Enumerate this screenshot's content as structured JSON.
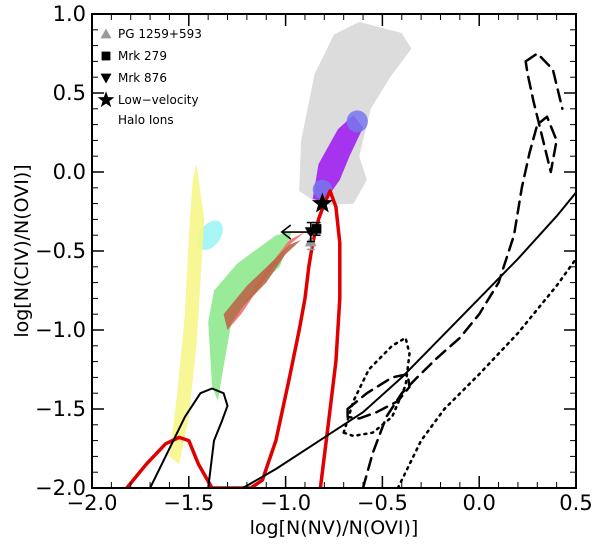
{
  "chart_data": {
    "type": "scatter",
    "title": "",
    "xlabel": "log[N(NV)/N(OVI)]",
    "ylabel": "log[N(CIV)/N(OVI)]",
    "xlim": [
      -2.0,
      0.5
    ],
    "ylim": [
      -2.0,
      1.0
    ],
    "x_ticks": [
      -2.0,
      -1.5,
      -1.0,
      -0.5,
      0.0,
      0.5
    ],
    "x_tick_labels": [
      "−2.0",
      "−1.5",
      "−1.0",
      "−0.5",
      "0.0",
      "0.5"
    ],
    "y_ticks": [
      -2.0,
      -1.5,
      -1.0,
      -0.5,
      0.0,
      0.5,
      1.0
    ],
    "y_tick_labels": [
      "−2.0",
      "−1.5",
      "−1.0",
      "−0.5",
      "0.0",
      "0.5",
      "1.0"
    ],
    "grid": false,
    "legend_position": "top-left",
    "legend": [
      {
        "label": "PG 1259+593",
        "marker": "triangle-up",
        "color": "#9a9a9a"
      },
      {
        "label": "Mrk 279",
        "marker": "square",
        "color": "#000000"
      },
      {
        "label": "Mrk 876",
        "marker": "triangle-down",
        "color": "#000000"
      },
      {
        "label": "Low−velocity",
        "label2": "Halo Ions",
        "marker": "star",
        "color": "#000000"
      }
    ],
    "points": [
      {
        "series": "PG 1259+593",
        "x": -0.87,
        "y": -0.44,
        "yerr": 0.05,
        "marker": "triangle-up",
        "color": "#9a9a9a"
      },
      {
        "series": "Mrk 279",
        "x": -0.84,
        "y": -0.36,
        "yerr": 0.04,
        "marker": "square",
        "color": "#000000"
      },
      {
        "series": "Mrk 876",
        "x": -0.87,
        "y": -0.38,
        "yerr": 0.06,
        "marker": "triangle-down",
        "color": "#000000",
        "upper_limit_x": true
      },
      {
        "series": "Low−velocity Halo Ions",
        "x": -0.81,
        "y": -0.2,
        "marker": "star",
        "color": "#000000"
      }
    ],
    "regions": [
      {
        "id": "grey",
        "color": "#d8d8d8",
        "polygon": [
          [
            -0.62,
            0.95
          ],
          [
            -0.4,
            0.88
          ],
          [
            -0.35,
            0.78
          ],
          [
            -0.46,
            0.6
          ],
          [
            -0.56,
            0.4
          ],
          [
            -0.62,
            0.1
          ],
          [
            -0.58,
            -0.05
          ],
          [
            -0.65,
            -0.2
          ],
          [
            -0.82,
            -0.21
          ],
          [
            -0.93,
            -0.12
          ],
          [
            -0.92,
            0.2
          ],
          [
            -0.85,
            0.62
          ],
          [
            -0.75,
            0.87
          ]
        ]
      },
      {
        "id": "magenta",
        "color": "#a020f0",
        "polygon": [
          [
            -0.65,
            0.36
          ],
          [
            -0.6,
            0.28
          ],
          [
            -0.67,
            0.1
          ],
          [
            -0.72,
            -0.05
          ],
          [
            -0.8,
            -0.19
          ],
          [
            -0.86,
            -0.17
          ],
          [
            -0.83,
            0.05
          ],
          [
            -0.73,
            0.27
          ]
        ]
      },
      {
        "id": "blue-ellipse-top",
        "color": "#7777ee",
        "ellipse": [
          -0.63,
          0.32,
          0.055,
          0.07
        ]
      },
      {
        "id": "blue-ellipse-mid",
        "color": "#7777ee",
        "ellipse": [
          -0.81,
          -0.11,
          0.05,
          0.06
        ]
      },
      {
        "id": "cyan",
        "color": "#a8f5f5",
        "ellipse_rot": [
          -1.39,
          -0.4,
          0.085,
          0.022,
          -55
        ]
      },
      {
        "id": "yellow",
        "color": "#f6f68a",
        "polygon": [
          [
            -1.46,
            0.05
          ],
          [
            -1.42,
            -0.3
          ],
          [
            -1.44,
            -0.7
          ],
          [
            -1.46,
            -1.1
          ],
          [
            -1.5,
            -1.55
          ],
          [
            -1.55,
            -1.85
          ],
          [
            -1.6,
            -1.8
          ],
          [
            -1.56,
            -1.4
          ],
          [
            -1.52,
            -0.9
          ],
          [
            -1.5,
            -0.4
          ],
          [
            -1.48,
            -0.05
          ]
        ]
      },
      {
        "id": "green",
        "color": "#8ee88e",
        "polygon": [
          [
            -0.97,
            -0.38
          ],
          [
            -1.03,
            -0.6
          ],
          [
            -1.17,
            -0.75
          ],
          [
            -1.28,
            -0.95
          ],
          [
            -1.33,
            -1.3
          ],
          [
            -1.35,
            -1.45
          ],
          [
            -1.38,
            -1.35
          ],
          [
            -1.4,
            -0.95
          ],
          [
            -1.37,
            -0.75
          ],
          [
            -1.25,
            -0.58
          ],
          [
            -1.05,
            -0.4
          ]
        ]
      },
      {
        "id": "red",
        "color": "#f07070",
        "polygon": [
          [
            -0.9,
            -0.38
          ],
          [
            -0.97,
            -0.45
          ],
          [
            -1.12,
            -0.7
          ],
          [
            -1.23,
            -0.9
          ],
          [
            -1.3,
            -1.0
          ],
          [
            -1.25,
            -0.9
          ],
          [
            -1.1,
            -0.62
          ],
          [
            -0.98,
            -0.43
          ]
        ]
      },
      {
        "id": "brown",
        "color": "#b86848",
        "polygon": [
          [
            -0.92,
            -0.43
          ],
          [
            -1.0,
            -0.52
          ],
          [
            -1.1,
            -0.7
          ],
          [
            -1.22,
            -0.85
          ],
          [
            -1.3,
            -1.0
          ],
          [
            -1.32,
            -0.9
          ],
          [
            -1.2,
            -0.72
          ],
          [
            -1.08,
            -0.58
          ],
          [
            -0.98,
            -0.46
          ]
        ]
      }
    ],
    "curves": [
      {
        "id": "red-curve",
        "color": "#e00000",
        "dash": "solid",
        "width": 3.5,
        "points": [
          [
            -1.82,
            -2.0
          ],
          [
            -1.72,
            -1.85
          ],
          [
            -1.62,
            -1.72
          ],
          [
            -1.55,
            -1.68
          ],
          [
            -1.5,
            -1.7
          ],
          [
            -1.45,
            -1.85
          ],
          [
            -1.38,
            -2.0
          ],
          [
            -1.3,
            -2.0
          ],
          [
            -1.18,
            -2.0
          ],
          [
            -1.12,
            -1.95
          ],
          [
            -1.05,
            -1.7
          ],
          [
            -0.98,
            -1.3
          ],
          [
            -0.93,
            -1.0
          ],
          [
            -0.9,
            -0.8
          ],
          [
            -0.88,
            -0.6
          ],
          [
            -0.86,
            -0.45
          ],
          [
            -0.83,
            -0.3
          ],
          [
            -0.8,
            -0.2
          ],
          [
            -0.77,
            -0.12
          ],
          [
            -0.74,
            -0.22
          ],
          [
            -0.72,
            -0.45
          ],
          [
            -0.72,
            -0.8
          ],
          [
            -0.74,
            -1.2
          ],
          [
            -0.78,
            -1.6
          ],
          [
            -0.82,
            -2.0
          ]
        ]
      },
      {
        "id": "black-solid-line",
        "color": "#000000",
        "dash": "solid",
        "width": 2,
        "points": [
          [
            -1.22,
            -2.0
          ],
          [
            -1.05,
            -1.88
          ],
          [
            -0.85,
            -1.72
          ],
          [
            -0.6,
            -1.52
          ],
          [
            -0.4,
            -1.3
          ],
          [
            -0.2,
            -1.05
          ],
          [
            0.0,
            -0.8
          ],
          [
            0.2,
            -0.55
          ],
          [
            0.4,
            -0.28
          ],
          [
            0.5,
            -0.13
          ]
        ]
      },
      {
        "id": "black-solid-loop",
        "color": "#000000",
        "dash": "solid",
        "width": 2,
        "points": [
          [
            -1.7,
            -2.0
          ],
          [
            -1.62,
            -1.8
          ],
          [
            -1.52,
            -1.55
          ],
          [
            -1.44,
            -1.4
          ],
          [
            -1.38,
            -1.37
          ],
          [
            -1.32,
            -1.4
          ],
          [
            -1.3,
            -1.48
          ],
          [
            -1.33,
            -1.58
          ],
          [
            -1.37,
            -1.7
          ],
          [
            -1.4,
            -2.0
          ]
        ]
      },
      {
        "id": "black-dashed-curve",
        "color": "#000000",
        "dash": "12,7",
        "width": 2.5,
        "points": [
          [
            -0.6,
            -2.0
          ],
          [
            -0.55,
            -1.78
          ],
          [
            -0.48,
            -1.55
          ],
          [
            -0.4,
            -1.4
          ],
          [
            -0.32,
            -1.3
          ],
          [
            -0.22,
            -1.18
          ],
          [
            -0.1,
            -1.05
          ],
          [
            0.0,
            -0.9
          ],
          [
            0.1,
            -0.7
          ],
          [
            0.18,
            -0.4
          ],
          [
            0.22,
            -0.1
          ],
          [
            0.26,
            0.12
          ],
          [
            0.3,
            0.3
          ],
          [
            0.35,
            0.35
          ],
          [
            0.4,
            0.2
          ],
          [
            0.37,
            0.0
          ],
          [
            0.33,
            0.2
          ],
          [
            0.28,
            0.45
          ],
          [
            0.25,
            0.62
          ],
          [
            0.24,
            0.7
          ]
        ]
      },
      {
        "id": "black-dashed-arc",
        "color": "#000000",
        "dash": "12,7",
        "width": 2.5,
        "points": [
          [
            0.24,
            0.7
          ],
          [
            0.3,
            0.75
          ],
          [
            0.38,
            0.65
          ],
          [
            0.43,
            0.4
          ]
        ]
      },
      {
        "id": "black-dashed-loop",
        "color": "#000000",
        "dash": "12,7",
        "width": 2.5,
        "points": [
          [
            -0.68,
            -1.5
          ],
          [
            -0.58,
            -1.4
          ],
          [
            -0.45,
            -1.3
          ],
          [
            -0.37,
            -1.28
          ],
          [
            -0.36,
            -1.36
          ],
          [
            -0.42,
            -1.45
          ],
          [
            -0.53,
            -1.52
          ],
          [
            -0.62,
            -1.56
          ],
          [
            -0.68,
            -1.55
          ],
          [
            -0.68,
            -1.5
          ]
        ]
      },
      {
        "id": "black-dotted-loop",
        "color": "#000000",
        "dash": "2,5",
        "width": 2.5,
        "points": [
          [
            -0.7,
            -1.65
          ],
          [
            -0.65,
            -1.45
          ],
          [
            -0.57,
            -1.25
          ],
          [
            -0.45,
            -1.1
          ],
          [
            -0.38,
            -1.05
          ],
          [
            -0.36,
            -1.15
          ],
          [
            -0.38,
            -1.35
          ],
          [
            -0.45,
            -1.55
          ],
          [
            -0.55,
            -1.65
          ],
          [
            -0.65,
            -1.67
          ],
          [
            -0.7,
            -1.65
          ]
        ]
      },
      {
        "id": "black-dotted-curve",
        "color": "#000000",
        "dash": "2,5",
        "width": 2.5,
        "points": [
          [
            -0.42,
            -2.0
          ],
          [
            -0.3,
            -1.7
          ],
          [
            -0.18,
            -1.5
          ],
          [
            0.0,
            -1.28
          ],
          [
            0.2,
            -1.02
          ],
          [
            0.4,
            -0.72
          ],
          [
            0.5,
            -0.55
          ]
        ]
      }
    ]
  }
}
